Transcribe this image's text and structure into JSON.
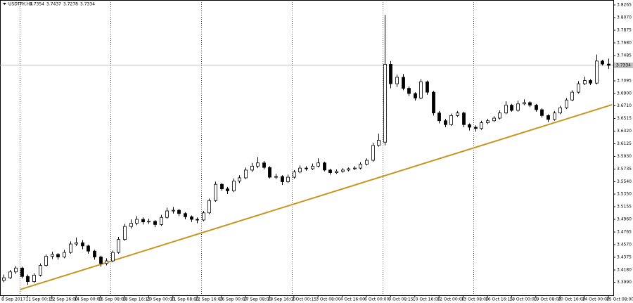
{
  "chart_data": {
    "type": "candlestick",
    "title": "USDTRY,H4",
    "ylim": [
      3.379,
      3.8341
    ],
    "yticks": [
      3.8265,
      {
        "value": 3.807,
        "label": "3.8070"
      },
      3.7875,
      {
        "value": 3.768,
        "label": "3.7680"
      },
      3.7485,
      3.7095,
      {
        "value": 3.69,
        "label": "3.6900"
      },
      {
        "value": 3.671,
        "label": "3.6710"
      },
      3.6515,
      {
        "value": 3.632,
        "label": "3.6320"
      },
      3.6125,
      {
        "value": 3.593,
        "label": "3.5930"
      },
      3.5735,
      {
        "value": 3.554,
        "label": "3.5540"
      },
      {
        "value": 3.535,
        "label": "3.5350"
      },
      3.5155,
      {
        "value": 3.496,
        "label": "3.4960"
      },
      3.4765,
      {
        "value": 3.457,
        "label": "3.4570"
      },
      3.4375,
      {
        "value": 3.418,
        "label": "3.4180"
      },
      {
        "value": 3.399,
        "label": "3.3990"
      }
    ],
    "xtick_labels": [
      "8 Sep 2017",
      "11 Sep 00:15",
      "12 Sep 16:00",
      "14 Sep 00:00",
      "15 Sep 08:00",
      "18 Sep 16:15",
      "20 Sep 00:00",
      "21 Sep 08:00",
      "22 Sep 16:00",
      "26 Sep 00:00",
      "27 Sep 08:00",
      "28 Sep 16:00",
      "2 Oct 00:15",
      "3 Oct 08:00",
      "4 Oct 16:00",
      "6 Oct 00:00",
      "9 Oct 08:15",
      "10 Oct 16:00",
      "12 Oct 00:00",
      "13 Oct 08:00",
      "16 Oct 16:15",
      "18 Oct 00:00",
      "19 Oct 08:00",
      "20 Oct 16:00",
      "24 Oct 00:00",
      "25 Oct 08:00"
    ],
    "trendline": {
      "color": "#c8961e",
      "x": [
        2.7,
        100.6
      ],
      "values": [
        3.3877,
        3.6727
      ]
    },
    "candles": [
      [
        3.402,
        3.411,
        3.399,
        3.406
      ],
      [
        3.406,
        3.418,
        3.404,
        3.415
      ],
      [
        3.415,
        3.424,
        3.412,
        3.421
      ],
      [
        3.421,
        3.423,
        3.405,
        3.408
      ],
      [
        3.408,
        3.411,
        3.395,
        3.4
      ],
      [
        3.4,
        3.413,
        3.398,
        3.41
      ],
      [
        3.41,
        3.428,
        3.408,
        3.425
      ],
      [
        3.425,
        3.442,
        3.423,
        3.439
      ],
      [
        3.439,
        3.446,
        3.435,
        3.442
      ],
      [
        3.442,
        3.444,
        3.434,
        3.438
      ],
      [
        3.438,
        3.449,
        3.436,
        3.445
      ],
      [
        3.445,
        3.462,
        3.443,
        3.458
      ],
      [
        3.458,
        3.468,
        3.455,
        3.46
      ],
      [
        3.46,
        3.464,
        3.45,
        3.455
      ],
      [
        3.455,
        3.457,
        3.443,
        3.447
      ],
      [
        3.447,
        3.449,
        3.434,
        3.438
      ],
      [
        3.438,
        3.44,
        3.423,
        3.428
      ],
      [
        3.428,
        3.436,
        3.425,
        3.432
      ],
      [
        3.432,
        3.448,
        3.43,
        3.445
      ],
      [
        3.445,
        3.469,
        3.443,
        3.465
      ],
      [
        3.465,
        3.489,
        3.463,
        3.485
      ],
      [
        3.485,
        3.496,
        3.482,
        3.49
      ],
      [
        3.49,
        3.501,
        3.487,
        3.496
      ],
      [
        3.496,
        3.499,
        3.488,
        3.492
      ],
      [
        3.492,
        3.497,
        3.489,
        3.493
      ],
      [
        3.493,
        3.495,
        3.484,
        3.488
      ],
      [
        3.488,
        3.503,
        3.486,
        3.499
      ],
      [
        3.499,
        3.514,
        3.497,
        3.509
      ],
      [
        3.509,
        3.515,
        3.505,
        3.51
      ],
      [
        3.51,
        3.512,
        3.501,
        3.505
      ],
      [
        3.505,
        3.507,
        3.496,
        3.5
      ],
      [
        3.5,
        3.502,
        3.492,
        3.496
      ],
      [
        3.496,
        3.499,
        3.49,
        3.495
      ],
      [
        3.495,
        3.509,
        3.493,
        3.506
      ],
      [
        3.506,
        3.528,
        3.504,
        3.525
      ],
      [
        3.525,
        3.554,
        3.523,
        3.55
      ],
      [
        3.55,
        3.552,
        3.54,
        3.543
      ],
      [
        3.543,
        3.546,
        3.535,
        3.54
      ],
      [
        3.54,
        3.559,
        3.538,
        3.555
      ],
      [
        3.555,
        3.564,
        3.552,
        3.56
      ],
      [
        3.56,
        3.576,
        3.558,
        3.572
      ],
      [
        3.572,
        3.583,
        3.569,
        3.578
      ],
      [
        3.578,
        3.592,
        3.575,
        3.583
      ],
      [
        3.583,
        3.586,
        3.573,
        3.576
      ],
      [
        3.576,
        3.578,
        3.559,
        3.561
      ],
      [
        3.561,
        3.566,
        3.558,
        3.562
      ],
      [
        3.562,
        3.564,
        3.549,
        3.554
      ],
      [
        3.554,
        3.565,
        3.552,
        3.561
      ],
      [
        3.561,
        3.572,
        3.559,
        3.569
      ],
      [
        3.569,
        3.579,
        3.567,
        3.575
      ],
      [
        3.575,
        3.578,
        3.571,
        3.574
      ],
      [
        3.574,
        3.582,
        3.572,
        3.578
      ],
      [
        3.578,
        3.59,
        3.576,
        3.583
      ],
      [
        3.583,
        3.585,
        3.57,
        3.572
      ],
      [
        3.572,
        3.574,
        3.565,
        3.568
      ],
      [
        3.568,
        3.573,
        3.566,
        3.57
      ],
      [
        3.57,
        3.575,
        3.568,
        3.572
      ],
      [
        3.572,
        3.576,
        3.57,
        3.574
      ],
      [
        3.574,
        3.578,
        3.572,
        3.575
      ],
      [
        3.575,
        3.584,
        3.573,
        3.581
      ],
      [
        3.581,
        3.59,
        3.579,
        3.587
      ],
      [
        3.587,
        3.614,
        3.585,
        3.61
      ],
      [
        3.61,
        3.628,
        3.608,
        3.618
      ],
      [
        3.615,
        3.811,
        3.61,
        3.735
      ],
      [
        3.735,
        3.74,
        3.698,
        3.705
      ],
      [
        3.705,
        3.719,
        3.7,
        3.715
      ],
      [
        3.715,
        3.72,
        3.695,
        3.698
      ],
      [
        3.698,
        3.701,
        3.686,
        3.69
      ],
      [
        3.69,
        3.692,
        3.679,
        3.683
      ],
      [
        3.683,
        3.712,
        3.681,
        3.708
      ],
      [
        3.708,
        3.71,
        3.688,
        3.692
      ],
      [
        3.692,
        3.694,
        3.656,
        3.66
      ],
      [
        3.66,
        3.663,
        3.644,
        3.648
      ],
      [
        3.648,
        3.651,
        3.638,
        3.642
      ],
      [
        3.642,
        3.659,
        3.64,
        3.656
      ],
      [
        3.656,
        3.663,
        3.654,
        3.66
      ],
      [
        3.66,
        3.662,
        3.638,
        3.642
      ],
      [
        3.642,
        3.644,
        3.633,
        3.638
      ],
      [
        3.638,
        3.641,
        3.631,
        3.636
      ],
      [
        3.636,
        3.648,
        3.634,
        3.645
      ],
      [
        3.645,
        3.651,
        3.643,
        3.648
      ],
      [
        3.648,
        3.655,
        3.646,
        3.652
      ],
      [
        3.652,
        3.664,
        3.65,
        3.66
      ],
      [
        3.66,
        3.678,
        3.658,
        3.672
      ],
      [
        3.672,
        3.674,
        3.662,
        3.664
      ],
      [
        3.664,
        3.679,
        3.662,
        3.674
      ],
      [
        3.674,
        3.681,
        3.672,
        3.676
      ],
      [
        3.676,
        3.678,
        3.669,
        3.672
      ],
      [
        3.672,
        3.674,
        3.662,
        3.665
      ],
      [
        3.665,
        3.667,
        3.653,
        3.656
      ],
      [
        3.656,
        3.658,
        3.646,
        3.65
      ],
      [
        3.65,
        3.663,
        3.648,
        3.66
      ],
      [
        3.66,
        3.671,
        3.658,
        3.668
      ],
      [
        3.668,
        3.683,
        3.666,
        3.68
      ],
      [
        3.68,
        3.695,
        3.678,
        3.692
      ],
      [
        3.692,
        3.709,
        3.69,
        3.705
      ],
      [
        3.705,
        3.716,
        3.703,
        3.71
      ],
      [
        3.71,
        3.712,
        3.703,
        3.706
      ],
      [
        3.706,
        3.75,
        3.704,
        3.74
      ],
      [
        3.74,
        3.742,
        3.733,
        3.7354
      ],
      [
        3.7354,
        3.7437,
        3.7278,
        3.7334
      ]
    ]
  }
}
